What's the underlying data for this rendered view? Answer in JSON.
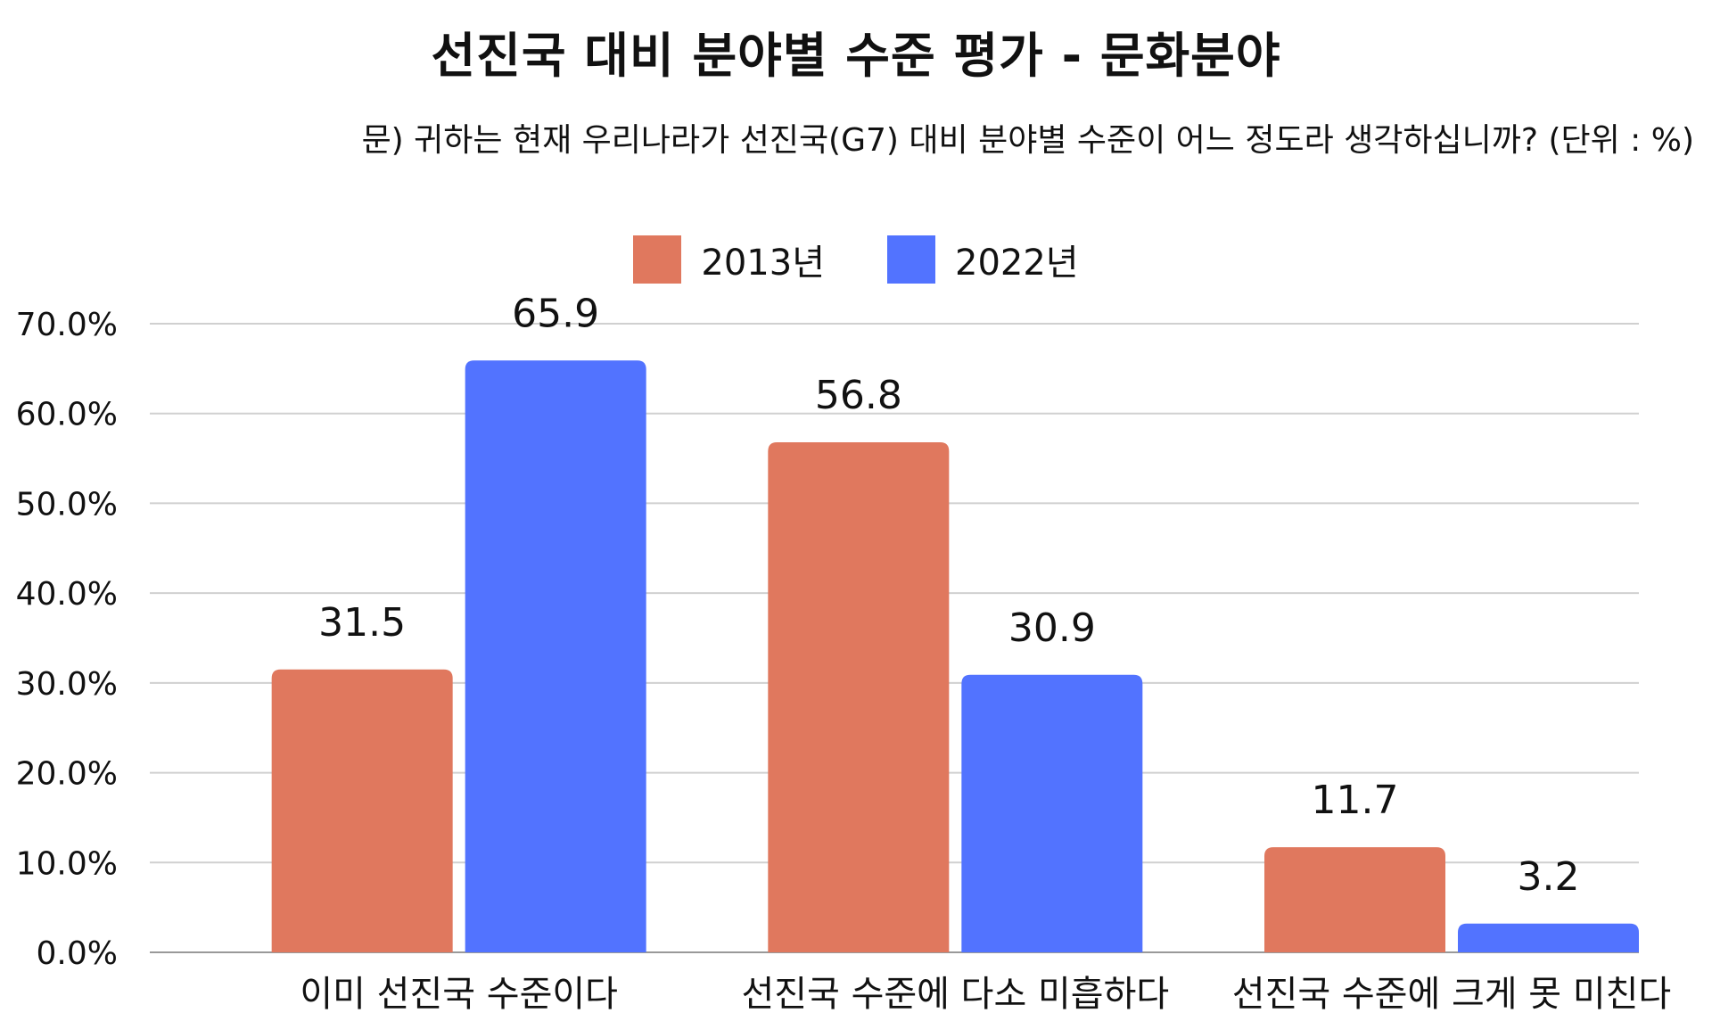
{
  "chart_data": {
    "type": "bar",
    "title": "선진국 대비 분야별 수준 평가 - 문화분야",
    "subtitle": "문) 귀하는 현재 우리나라가 선진국(G7) 대비 분야별 수준이 어느 정도라 생각하십니까? (단위 : %)",
    "categories": [
      "이미 선진국 수준이다",
      "선진국 수준에 다소 미흡하다",
      "선진국 수준에 크게 못 미친다"
    ],
    "series": [
      {
        "name": "2013년",
        "values": [
          31.5,
          56.8,
          11.7
        ],
        "color": "#E0785E"
      },
      {
        "name": "2022년",
        "values": [
          65.9,
          30.9,
          3.2
        ],
        "color": "#5273FF"
      }
    ],
    "ylim": [
      0,
      70
    ],
    "yticks": [
      "0.0%",
      "10.0%",
      "20.0%",
      "30.0%",
      "40.0%",
      "50.0%",
      "60.0%",
      "70.0%"
    ],
    "grid": true,
    "legend_position": "top"
  }
}
